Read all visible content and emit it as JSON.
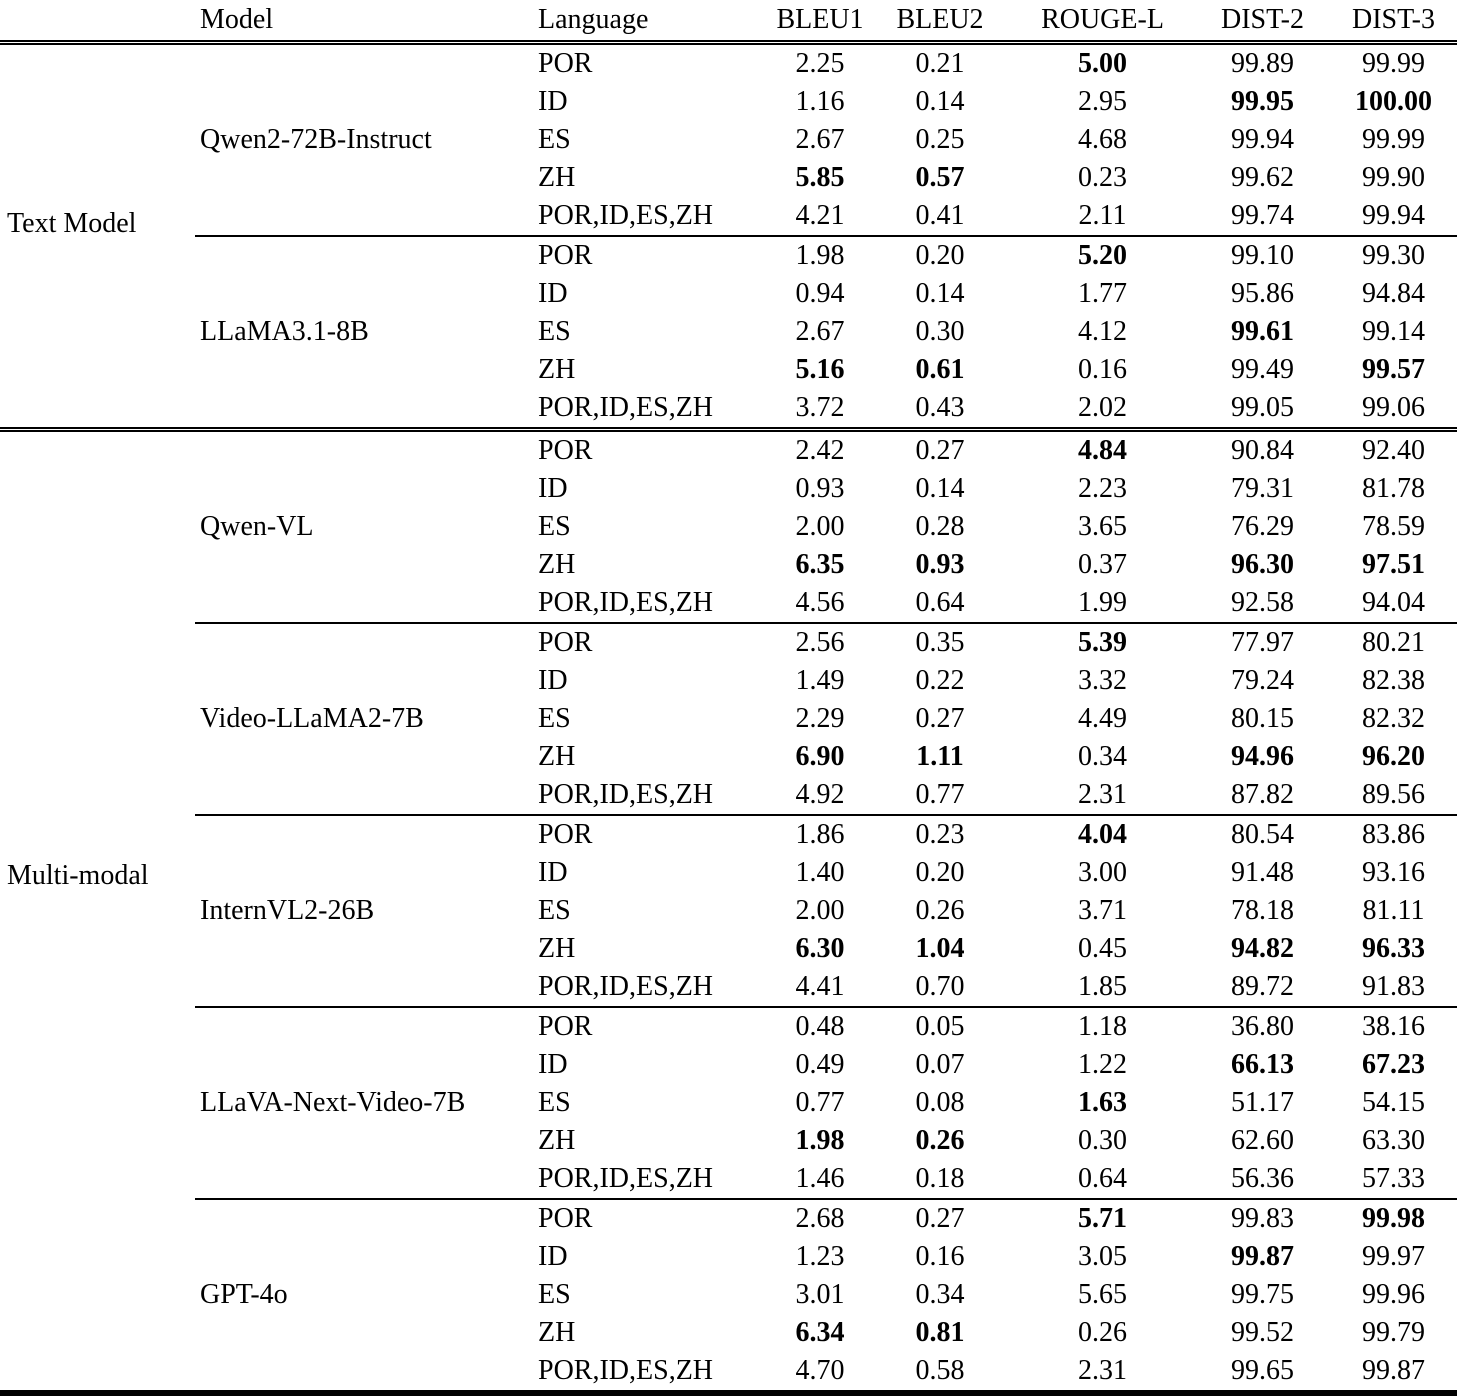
{
  "table": {
    "column_headers": [
      "Model",
      "Language",
      "BLEU1",
      "BLEU2",
      "ROUGE-L",
      "DIST-2",
      "DIST-3"
    ],
    "groups": [
      {
        "label": "Text Model",
        "models": [
          {
            "name": "Qwen2-72B-Instruct",
            "rows": [
              {
                "language": "POR",
                "values": [
                  "2.25",
                  "0.21",
                  "5.00",
                  "99.89",
                  "99.99"
                ],
                "bold": [
                  false,
                  false,
                  true,
                  false,
                  false
                ]
              },
              {
                "language": "ID",
                "values": [
                  "1.16",
                  "0.14",
                  "2.95",
                  "99.95",
                  "100.00"
                ],
                "bold": [
                  false,
                  false,
                  false,
                  true,
                  true
                ]
              },
              {
                "language": "ES",
                "values": [
                  "2.67",
                  "0.25",
                  "4.68",
                  "99.94",
                  "99.99"
                ],
                "bold": [
                  false,
                  false,
                  false,
                  false,
                  false
                ]
              },
              {
                "language": "ZH",
                "values": [
                  "5.85",
                  "0.57",
                  "0.23",
                  "99.62",
                  "99.90"
                ],
                "bold": [
                  true,
                  true,
                  false,
                  false,
                  false
                ]
              },
              {
                "language": "POR,ID,ES,ZH",
                "values": [
                  "4.21",
                  "0.41",
                  "2.11",
                  "99.74",
                  "99.94"
                ],
                "bold": [
                  false,
                  false,
                  false,
                  false,
                  false
                ]
              }
            ]
          },
          {
            "name": "LLaMA3.1-8B",
            "rows": [
              {
                "language": "POR",
                "values": [
                  "1.98",
                  "0.20",
                  "5.20",
                  "99.10",
                  "99.30"
                ],
                "bold": [
                  false,
                  false,
                  true,
                  false,
                  false
                ]
              },
              {
                "language": "ID",
                "values": [
                  "0.94",
                  "0.14",
                  "1.77",
                  "95.86",
                  "94.84"
                ],
                "bold": [
                  false,
                  false,
                  false,
                  false,
                  false
                ]
              },
              {
                "language": "ES",
                "values": [
                  "2.67",
                  "0.30",
                  "4.12",
                  "99.61",
                  "99.14"
                ],
                "bold": [
                  false,
                  false,
                  false,
                  true,
                  false
                ]
              },
              {
                "language": "ZH",
                "values": [
                  "5.16",
                  "0.61",
                  "0.16",
                  "99.49",
                  "99.57"
                ],
                "bold": [
                  true,
                  true,
                  false,
                  false,
                  true
                ]
              },
              {
                "language": "POR,ID,ES,ZH",
                "values": [
                  "3.72",
                  "0.43",
                  "2.02",
                  "99.05",
                  "99.06"
                ],
                "bold": [
                  false,
                  false,
                  false,
                  false,
                  false
                ]
              }
            ]
          }
        ]
      },
      {
        "label": "Multi-modal",
        "models": [
          {
            "name": "Qwen-VL",
            "rows": [
              {
                "language": "POR",
                "values": [
                  "2.42",
                  "0.27",
                  "4.84",
                  "90.84",
                  "92.40"
                ],
                "bold": [
                  false,
                  false,
                  true,
                  false,
                  false
                ]
              },
              {
                "language": "ID",
                "values": [
                  "0.93",
                  "0.14",
                  "2.23",
                  "79.31",
                  "81.78"
                ],
                "bold": [
                  false,
                  false,
                  false,
                  false,
                  false
                ]
              },
              {
                "language": "ES",
                "values": [
                  "2.00",
                  "0.28",
                  "3.65",
                  "76.29",
                  "78.59"
                ],
                "bold": [
                  false,
                  false,
                  false,
                  false,
                  false
                ]
              },
              {
                "language": "ZH",
                "values": [
                  "6.35",
                  "0.93",
                  "0.37",
                  "96.30",
                  "97.51"
                ],
                "bold": [
                  true,
                  true,
                  false,
                  true,
                  true
                ]
              },
              {
                "language": "POR,ID,ES,ZH",
                "values": [
                  "4.56",
                  "0.64",
                  "1.99",
                  "92.58",
                  "94.04"
                ],
                "bold": [
                  false,
                  false,
                  false,
                  false,
                  false
                ]
              }
            ]
          },
          {
            "name": "Video-LLaMA2-7B",
            "rows": [
              {
                "language": "POR",
                "values": [
                  "2.56",
                  "0.35",
                  "5.39",
                  "77.97",
                  "80.21"
                ],
                "bold": [
                  false,
                  false,
                  true,
                  false,
                  false
                ]
              },
              {
                "language": "ID",
                "values": [
                  "1.49",
                  "0.22",
                  "3.32",
                  "79.24",
                  "82.38"
                ],
                "bold": [
                  false,
                  false,
                  false,
                  false,
                  false
                ]
              },
              {
                "language": "ES",
                "values": [
                  "2.29",
                  "0.27",
                  "4.49",
                  "80.15",
                  "82.32"
                ],
                "bold": [
                  false,
                  false,
                  false,
                  false,
                  false
                ]
              },
              {
                "language": "ZH",
                "values": [
                  "6.90",
                  "1.11",
                  "0.34",
                  "94.96",
                  "96.20"
                ],
                "bold": [
                  true,
                  true,
                  false,
                  true,
                  true
                ]
              },
              {
                "language": "POR,ID,ES,ZH",
                "values": [
                  "4.92",
                  "0.77",
                  "2.31",
                  "87.82",
                  "89.56"
                ],
                "bold": [
                  false,
                  false,
                  false,
                  false,
                  false
                ]
              }
            ]
          },
          {
            "name": "InternVL2-26B",
            "rows": [
              {
                "language": "POR",
                "values": [
                  "1.86",
                  "0.23",
                  "4.04",
                  "80.54",
                  "83.86"
                ],
                "bold": [
                  false,
                  false,
                  true,
                  false,
                  false
                ]
              },
              {
                "language": "ID",
                "values": [
                  "1.40",
                  "0.20",
                  "3.00",
                  "91.48",
                  "93.16"
                ],
                "bold": [
                  false,
                  false,
                  false,
                  false,
                  false
                ]
              },
              {
                "language": "ES",
                "values": [
                  "2.00",
                  "0.26",
                  "3.71",
                  "78.18",
                  "81.11"
                ],
                "bold": [
                  false,
                  false,
                  false,
                  false,
                  false
                ]
              },
              {
                "language": "ZH",
                "values": [
                  "6.30",
                  "1.04",
                  "0.45",
                  "94.82",
                  "96.33"
                ],
                "bold": [
                  true,
                  true,
                  false,
                  true,
                  true
                ]
              },
              {
                "language": "POR,ID,ES,ZH",
                "values": [
                  "4.41",
                  "0.70",
                  "1.85",
                  "89.72",
                  "91.83"
                ],
                "bold": [
                  false,
                  false,
                  false,
                  false,
                  false
                ]
              }
            ]
          },
          {
            "name": "LLaVA-Next-Video-7B",
            "rows": [
              {
                "language": "POR",
                "values": [
                  "0.48",
                  "0.05",
                  "1.18",
                  "36.80",
                  "38.16"
                ],
                "bold": [
                  false,
                  false,
                  false,
                  false,
                  false
                ]
              },
              {
                "language": "ID",
                "values": [
                  "0.49",
                  "0.07",
                  "1.22",
                  "66.13",
                  "67.23"
                ],
                "bold": [
                  false,
                  false,
                  false,
                  true,
                  true
                ]
              },
              {
                "language": "ES",
                "values": [
                  "0.77",
                  "0.08",
                  "1.63",
                  "51.17",
                  "54.15"
                ],
                "bold": [
                  false,
                  false,
                  true,
                  false,
                  false
                ]
              },
              {
                "language": "ZH",
                "values": [
                  "1.98",
                  "0.26",
                  "0.30",
                  "62.60",
                  "63.30"
                ],
                "bold": [
                  true,
                  true,
                  false,
                  false,
                  false
                ]
              },
              {
                "language": "POR,ID,ES,ZH",
                "values": [
                  "1.46",
                  "0.18",
                  "0.64",
                  "56.36",
                  "57.33"
                ],
                "bold": [
                  false,
                  false,
                  false,
                  false,
                  false
                ]
              }
            ]
          },
          {
            "name": "GPT-4o",
            "rows": [
              {
                "language": "POR",
                "values": [
                  "2.68",
                  "0.27",
                  "5.71",
                  "99.83",
                  "99.98"
                ],
                "bold": [
                  false,
                  false,
                  true,
                  false,
                  true
                ]
              },
              {
                "language": "ID",
                "values": [
                  "1.23",
                  "0.16",
                  "3.05",
                  "99.87",
                  "99.97"
                ],
                "bold": [
                  false,
                  false,
                  false,
                  true,
                  false
                ]
              },
              {
                "language": "ES",
                "values": [
                  "3.01",
                  "0.34",
                  "5.65",
                  "99.75",
                  "99.96"
                ],
                "bold": [
                  false,
                  false,
                  false,
                  false,
                  false
                ]
              },
              {
                "language": "ZH",
                "values": [
                  "6.34",
                  "0.81",
                  "0.26",
                  "99.52",
                  "99.79"
                ],
                "bold": [
                  true,
                  true,
                  false,
                  false,
                  false
                ]
              },
              {
                "language": "POR,ID,ES,ZH",
                "values": [
                  "4.70",
                  "0.58",
                  "2.31",
                  "99.65",
                  "99.87"
                ],
                "bold": [
                  false,
                  false,
                  false,
                  false,
                  false
                ]
              }
            ]
          }
        ]
      }
    ]
  },
  "colors": {
    "text": "#000000",
    "rule": "#000000",
    "background": "#ffffff"
  }
}
